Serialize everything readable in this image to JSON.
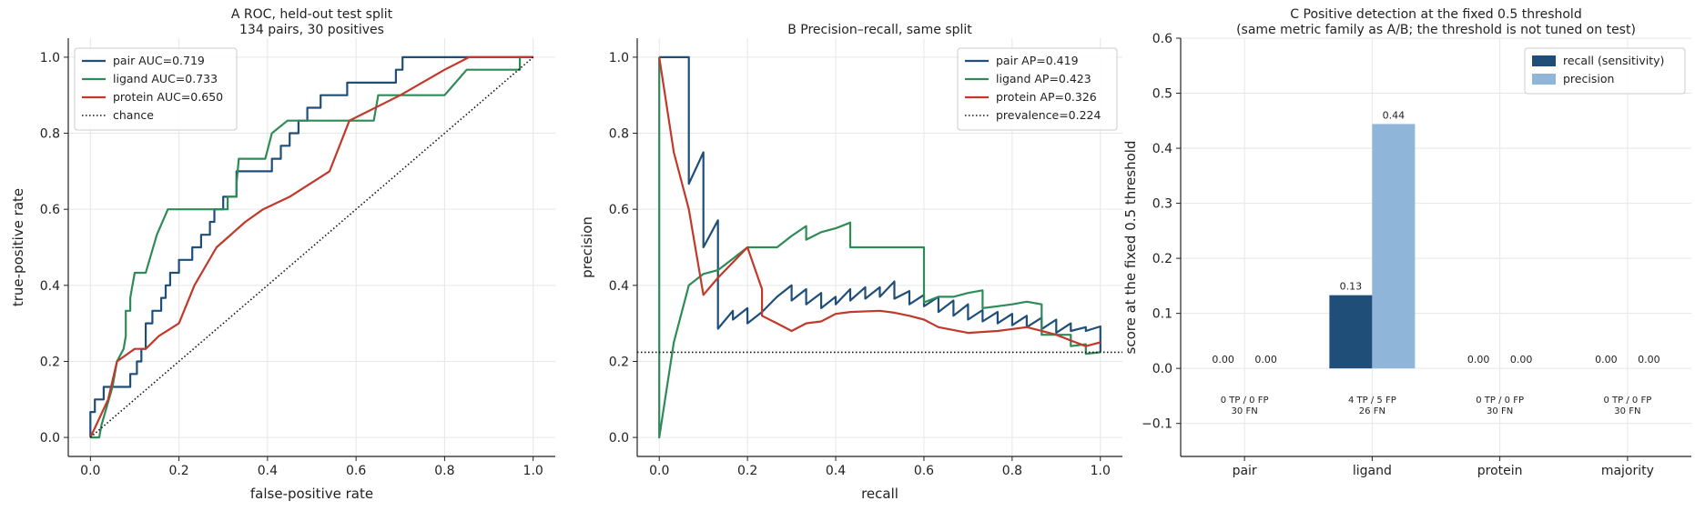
{
  "chart_data": [
    {
      "type": "line",
      "title": "A  ROC, held-out test split",
      "subtitle": "134 pairs, 30 positives",
      "xlabel": "false-positive rate",
      "ylabel": "true-positive rate",
      "xlim": [
        -0.05,
        1.05
      ],
      "ylim": [
        -0.05,
        1.05
      ],
      "xticks": [
        "0.0",
        "0.2",
        "0.4",
        "0.6",
        "0.8",
        "1.0"
      ],
      "yticks": [
        "0.0",
        "0.2",
        "0.4",
        "0.6",
        "0.8",
        "1.0"
      ],
      "grid": true,
      "legend_position": "top-left",
      "series": [
        {
          "name": "pair AUC=0.719",
          "color": "#1f4e79",
          "style": "solid",
          "points": [
            [
              0,
              0
            ],
            [
              0,
              0.067
            ],
            [
              0.01,
              0.067
            ],
            [
              0.01,
              0.1
            ],
            [
              0.03,
              0.1
            ],
            [
              0.03,
              0.133
            ],
            [
              0.09,
              0.133
            ],
            [
              0.09,
              0.167
            ],
            [
              0.105,
              0.167
            ],
            [
              0.105,
              0.2
            ],
            [
              0.115,
              0.2
            ],
            [
              0.115,
              0.233
            ],
            [
              0.125,
              0.233
            ],
            [
              0.125,
              0.3
            ],
            [
              0.14,
              0.3
            ],
            [
              0.14,
              0.333
            ],
            [
              0.16,
              0.333
            ],
            [
              0.16,
              0.367
            ],
            [
              0.17,
              0.367
            ],
            [
              0.17,
              0.4
            ],
            [
              0.18,
              0.4
            ],
            [
              0.18,
              0.433
            ],
            [
              0.2,
              0.433
            ],
            [
              0.2,
              0.467
            ],
            [
              0.23,
              0.467
            ],
            [
              0.23,
              0.5
            ],
            [
              0.25,
              0.5
            ],
            [
              0.25,
              0.533
            ],
            [
              0.27,
              0.533
            ],
            [
              0.27,
              0.567
            ],
            [
              0.28,
              0.567
            ],
            [
              0.28,
              0.6
            ],
            [
              0.3,
              0.6
            ],
            [
              0.3,
              0.633
            ],
            [
              0.33,
              0.633
            ],
            [
              0.33,
              0.7
            ],
            [
              0.41,
              0.7
            ],
            [
              0.41,
              0.733
            ],
            [
              0.43,
              0.733
            ],
            [
              0.43,
              0.767
            ],
            [
              0.45,
              0.767
            ],
            [
              0.45,
              0.8
            ],
            [
              0.47,
              0.8
            ],
            [
              0.47,
              0.833
            ],
            [
              0.49,
              0.833
            ],
            [
              0.49,
              0.867
            ],
            [
              0.52,
              0.867
            ],
            [
              0.52,
              0.9
            ],
            [
              0.58,
              0.9
            ],
            [
              0.58,
              0.933
            ],
            [
              0.69,
              0.933
            ],
            [
              0.69,
              0.967
            ],
            [
              0.705,
              0.967
            ],
            [
              0.705,
              1.0
            ],
            [
              1.0,
              1.0
            ]
          ]
        },
        {
          "name": "ligand AUC=0.733",
          "color": "#2e8b57",
          "style": "solid",
          "points": [
            [
              0,
              0
            ],
            [
              0.02,
              0
            ],
            [
              0.025,
              0.033
            ],
            [
              0.05,
              0.133
            ],
            [
              0.06,
              0.2
            ],
            [
              0.075,
              0.233
            ],
            [
              0.08,
              0.267
            ],
            [
              0.08,
              0.333
            ],
            [
              0.09,
              0.333
            ],
            [
              0.09,
              0.367
            ],
            [
              0.095,
              0.4
            ],
            [
              0.1,
              0.433
            ],
            [
              0.125,
              0.433
            ],
            [
              0.15,
              0.533
            ],
            [
              0.175,
              0.6
            ],
            [
              0.28,
              0.6
            ],
            [
              0.31,
              0.6
            ],
            [
              0.31,
              0.633
            ],
            [
              0.33,
              0.633
            ],
            [
              0.33,
              0.667
            ],
            [
              0.335,
              0.733
            ],
            [
              0.395,
              0.733
            ],
            [
              0.41,
              0.8
            ],
            [
              0.445,
              0.833
            ],
            [
              0.58,
              0.833
            ],
            [
              0.64,
              0.833
            ],
            [
              0.65,
              0.9
            ],
            [
              0.8,
              0.9
            ],
            [
              0.85,
              0.967
            ],
            [
              0.97,
              0.967
            ],
            [
              0.97,
              1.0
            ],
            [
              1.0,
              1.0
            ]
          ]
        },
        {
          "name": "protein AUC=0.650",
          "color": "#c0392b",
          "style": "solid",
          "points": [
            [
              0,
              0
            ],
            [
              0.04,
              0.1
            ],
            [
              0.06,
              0.2
            ],
            [
              0.1,
              0.233
            ],
            [
              0.125,
              0.233
            ],
            [
              0.155,
              0.267
            ],
            [
              0.2,
              0.3
            ],
            [
              0.235,
              0.4
            ],
            [
              0.285,
              0.5
            ],
            [
              0.35,
              0.567
            ],
            [
              0.39,
              0.6
            ],
            [
              0.45,
              0.633
            ],
            [
              0.54,
              0.7
            ],
            [
              0.585,
              0.833
            ],
            [
              0.7,
              0.9
            ],
            [
              0.8,
              0.967
            ],
            [
              0.855,
              1.0
            ],
            [
              1.0,
              1.0
            ]
          ]
        },
        {
          "name": "chance",
          "color": "#111111",
          "style": "dotted",
          "points": [
            [
              0,
              0
            ],
            [
              1,
              1
            ]
          ]
        }
      ]
    },
    {
      "type": "line",
      "title": "B  Precision–recall, same split",
      "subtitle": "",
      "xlabel": "recall",
      "ylabel": "precision",
      "xlim": [
        -0.05,
        1.05
      ],
      "ylim": [
        -0.05,
        1.05
      ],
      "xticks": [
        "0.0",
        "0.2",
        "0.4",
        "0.6",
        "0.8",
        "1.0"
      ],
      "yticks": [
        "0.0",
        "0.2",
        "0.4",
        "0.6",
        "0.8",
        "1.0"
      ],
      "grid": true,
      "legend_position": "top-right",
      "series": [
        {
          "name": "pair AP=0.419",
          "color": "#1f4e79",
          "style": "solid",
          "points": [
            [
              0,
              1.0
            ],
            [
              0.067,
              1.0
            ],
            [
              0.067,
              0.667
            ],
            [
              0.1,
              0.75
            ],
            [
              0.1,
              0.5
            ],
            [
              0.133,
              0.571
            ],
            [
              0.133,
              0.286
            ],
            [
              0.167,
              0.333
            ],
            [
              0.167,
              0.31
            ],
            [
              0.2,
              0.34
            ],
            [
              0.2,
              0.3
            ],
            [
              0.233,
              0.33
            ],
            [
              0.267,
              0.37
            ],
            [
              0.3,
              0.4
            ],
            [
              0.3,
              0.36
            ],
            [
              0.333,
              0.39
            ],
            [
              0.333,
              0.35
            ],
            [
              0.367,
              0.38
            ],
            [
              0.367,
              0.34
            ],
            [
              0.4,
              0.37
            ],
            [
              0.4,
              0.35
            ],
            [
              0.433,
              0.39
            ],
            [
              0.433,
              0.36
            ],
            [
              0.467,
              0.395
            ],
            [
              0.467,
              0.365
            ],
            [
              0.5,
              0.395
            ],
            [
              0.5,
              0.37
            ],
            [
              0.533,
              0.41
            ],
            [
              0.533,
              0.365
            ],
            [
              0.567,
              0.385
            ],
            [
              0.567,
              0.35
            ],
            [
              0.6,
              0.375
            ],
            [
              0.6,
              0.345
            ],
            [
              0.633,
              0.37
            ],
            [
              0.633,
              0.33
            ],
            [
              0.667,
              0.36
            ],
            [
              0.667,
              0.32
            ],
            [
              0.7,
              0.35
            ],
            [
              0.7,
              0.31
            ],
            [
              0.733,
              0.335
            ],
            [
              0.733,
              0.305
            ],
            [
              0.767,
              0.33
            ],
            [
              0.767,
              0.3
            ],
            [
              0.8,
              0.325
            ],
            [
              0.8,
              0.295
            ],
            [
              0.833,
              0.32
            ],
            [
              0.833,
              0.29
            ],
            [
              0.867,
              0.315
            ],
            [
              0.867,
              0.285
            ],
            [
              0.9,
              0.31
            ],
            [
              0.9,
              0.275
            ],
            [
              0.933,
              0.3
            ],
            [
              0.933,
              0.28
            ],
            [
              0.967,
              0.29
            ],
            [
              0.967,
              0.28
            ],
            [
              1.0,
              0.292
            ],
            [
              1.0,
              0.225
            ]
          ]
        },
        {
          "name": "ligand AP=0.423",
          "color": "#2e8b57",
          "style": "solid",
          "points": [
            [
              0,
              1.0
            ],
            [
              0,
              0
            ],
            [
              0.033,
              0.25
            ],
            [
              0.067,
              0.4
            ],
            [
              0.1,
              0.43
            ],
            [
              0.133,
              0.44
            ],
            [
              0.167,
              0.47
            ],
            [
              0.2,
              0.5
            ],
            [
              0.267,
              0.5
            ],
            [
              0.3,
              0.53
            ],
            [
              0.333,
              0.556
            ],
            [
              0.333,
              0.52
            ],
            [
              0.367,
              0.54
            ],
            [
              0.4,
              0.55
            ],
            [
              0.433,
              0.565
            ],
            [
              0.433,
              0.5
            ],
            [
              0.6,
              0.5
            ],
            [
              0.6,
              0.355
            ],
            [
              0.633,
              0.37
            ],
            [
              0.667,
              0.37
            ],
            [
              0.7,
              0.38
            ],
            [
              0.733,
              0.387
            ],
            [
              0.733,
              0.34
            ],
            [
              0.767,
              0.345
            ],
            [
              0.8,
              0.35
            ],
            [
              0.833,
              0.357
            ],
            [
              0.867,
              0.35
            ],
            [
              0.867,
              0.27
            ],
            [
              0.9,
              0.27
            ],
            [
              0.933,
              0.27
            ],
            [
              0.933,
              0.24
            ],
            [
              0.967,
              0.245
            ],
            [
              0.967,
              0.22
            ],
            [
              1.0,
              0.224
            ]
          ]
        },
        {
          "name": "protein AP=0.326",
          "color": "#c0392b",
          "style": "solid",
          "points": [
            [
              0,
              1.0
            ],
            [
              0.033,
              0.75
            ],
            [
              0.067,
              0.6
            ],
            [
              0.1,
              0.375
            ],
            [
              0.133,
              0.42
            ],
            [
              0.2,
              0.5
            ],
            [
              0.233,
              0.39
            ],
            [
              0.233,
              0.32
            ],
            [
              0.267,
              0.3
            ],
            [
              0.3,
              0.28
            ],
            [
              0.333,
              0.3
            ],
            [
              0.367,
              0.305
            ],
            [
              0.4,
              0.325
            ],
            [
              0.433,
              0.33
            ],
            [
              0.5,
              0.333
            ],
            [
              0.533,
              0.328
            ],
            [
              0.567,
              0.32
            ],
            [
              0.6,
              0.31
            ],
            [
              0.633,
              0.29
            ],
            [
              0.7,
              0.275
            ],
            [
              0.767,
              0.28
            ],
            [
              0.833,
              0.29
            ],
            [
              0.867,
              0.28
            ],
            [
              0.9,
              0.27
            ],
            [
              0.933,
              0.255
            ],
            [
              0.967,
              0.24
            ],
            [
              1.0,
              0.25
            ]
          ]
        },
        {
          "name": "prevalence=0.224",
          "color": "#111111",
          "style": "dotted",
          "points": [
            [
              -0.05,
              0.224
            ],
            [
              1.05,
              0.224
            ]
          ]
        }
      ]
    },
    {
      "type": "bar",
      "title": "C  Positive detection at the fixed 0.5 threshold",
      "subtitle": "(same metric family as A/B; the threshold is not tuned on test)",
      "xlabel": "",
      "ylabel": "score at the fixed 0.5 threshold",
      "categories": [
        "pair",
        "ligand",
        "protein",
        "majority"
      ],
      "ylim": [
        -0.16,
        0.6
      ],
      "yticks": [
        "−0.1",
        "0.0",
        "0.1",
        "0.2",
        "0.3",
        "0.4",
        "0.5",
        "0.6"
      ],
      "grid": true,
      "legend_position": "top-right",
      "series": [
        {
          "name": "recall (sensitivity)",
          "color": "#1f4e79",
          "values": [
            0.0,
            0.133,
            0.0,
            0.0
          ],
          "labels": [
            "0.00",
            "0.13",
            "0.00",
            "0.00"
          ]
        },
        {
          "name": "precision",
          "color": "#8fb6d9",
          "values": [
            0.0,
            0.444,
            0.0,
            0.0
          ],
          "labels": [
            "0.00",
            "0.44",
            "0.00",
            "0.00"
          ]
        }
      ],
      "annotations": [
        [
          "0 TP / 0 FP",
          "30 FN"
        ],
        [
          "4 TP / 5 FP",
          "26 FN"
        ],
        [
          "0 TP / 0 FP",
          "30 FN"
        ],
        [
          "0 TP / 0 FP",
          "30 FN"
        ]
      ]
    }
  ]
}
